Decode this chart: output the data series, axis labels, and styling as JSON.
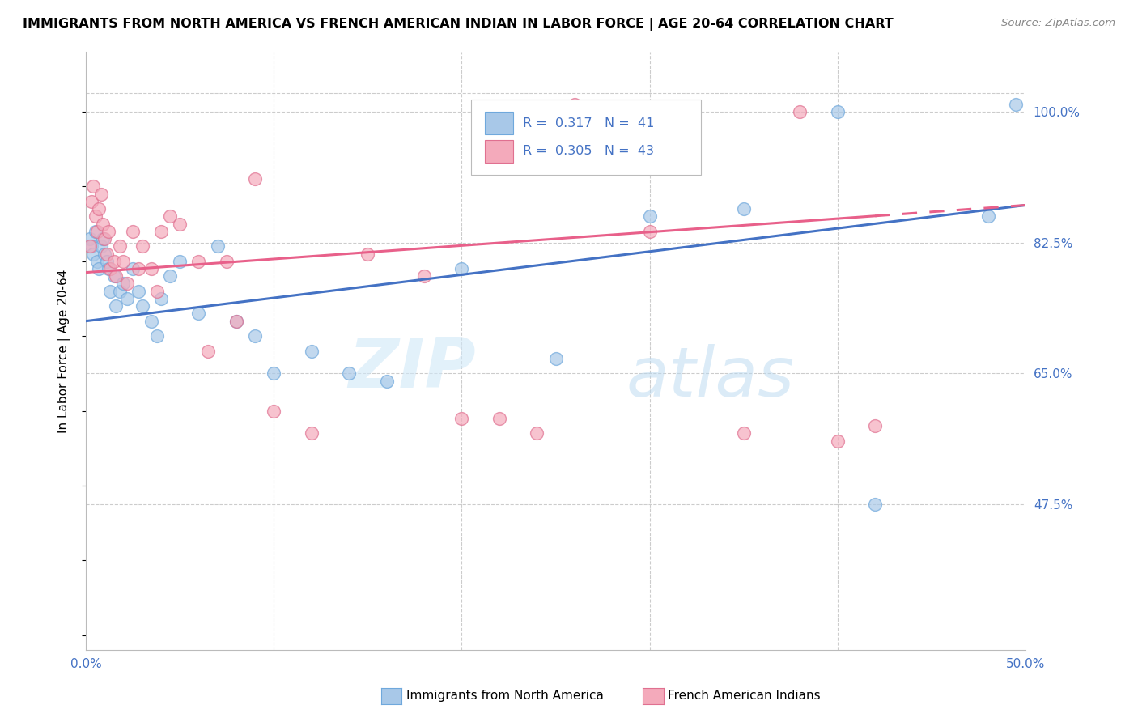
{
  "title": "IMMIGRANTS FROM NORTH AMERICA VS FRENCH AMERICAN INDIAN IN LABOR FORCE | AGE 20-64 CORRELATION CHART",
  "source": "Source: ZipAtlas.com",
  "ylabel": "In Labor Force | Age 20-64",
  "r1": 0.317,
  "n1": 41,
  "r2": 0.305,
  "n2": 43,
  "xlim": [
    0.0,
    0.5
  ],
  "ylim": [
    0.28,
    1.08
  ],
  "xtick_positions": [
    0.0,
    0.1,
    0.2,
    0.3,
    0.4,
    0.5
  ],
  "xticklabels": [
    "0.0%",
    "",
    "",
    "",
    "",
    "50.0%"
  ],
  "yticks_right": [
    0.475,
    0.65,
    0.825,
    1.0
  ],
  "ytick_labels_right": [
    "47.5%",
    "65.0%",
    "82.5%",
    "100.0%"
  ],
  "watermark_zip": "ZIP",
  "watermark_atlas": "atlas",
  "footer_label1": "Immigrants from North America",
  "footer_label2": "French American Indians",
  "blue_color_face": "#A8C8E8",
  "blue_color_edge": "#6FA8DC",
  "pink_color_face": "#F4AABB",
  "pink_color_edge": "#E07090",
  "blue_line_color": "#4472C4",
  "pink_line_color": "#E8608A",
  "grid_color": "#CCCCCC",
  "bg_color": "#FFFFFF",
  "blue_scatter_x": [
    0.002,
    0.003,
    0.004,
    0.005,
    0.006,
    0.007,
    0.008,
    0.009,
    0.01,
    0.011,
    0.012,
    0.013,
    0.015,
    0.016,
    0.018,
    0.02,
    0.022,
    0.025,
    0.028,
    0.03,
    0.035,
    0.038,
    0.04,
    0.045,
    0.05,
    0.06,
    0.07,
    0.08,
    0.09,
    0.1,
    0.12,
    0.14,
    0.16,
    0.2,
    0.25,
    0.3,
    0.35,
    0.4,
    0.42,
    0.48,
    0.495
  ],
  "blue_scatter_y": [
    0.83,
    0.82,
    0.81,
    0.84,
    0.8,
    0.79,
    0.82,
    0.83,
    0.81,
    0.8,
    0.79,
    0.76,
    0.78,
    0.74,
    0.76,
    0.77,
    0.75,
    0.79,
    0.76,
    0.74,
    0.72,
    0.7,
    0.75,
    0.78,
    0.8,
    0.73,
    0.82,
    0.72,
    0.7,
    0.65,
    0.68,
    0.65,
    0.64,
    0.79,
    0.67,
    0.86,
    0.87,
    1.0,
    0.475,
    0.86,
    1.01
  ],
  "pink_scatter_x": [
    0.002,
    0.003,
    0.004,
    0.005,
    0.006,
    0.007,
    0.008,
    0.009,
    0.01,
    0.011,
    0.012,
    0.013,
    0.015,
    0.016,
    0.018,
    0.02,
    0.022,
    0.025,
    0.028,
    0.03,
    0.035,
    0.038,
    0.04,
    0.045,
    0.05,
    0.06,
    0.065,
    0.075,
    0.08,
    0.09,
    0.1,
    0.12,
    0.15,
    0.18,
    0.2,
    0.22,
    0.24,
    0.26,
    0.3,
    0.35,
    0.38,
    0.4,
    0.42
  ],
  "pink_scatter_y": [
    0.82,
    0.88,
    0.9,
    0.86,
    0.84,
    0.87,
    0.89,
    0.85,
    0.83,
    0.81,
    0.84,
    0.79,
    0.8,
    0.78,
    0.82,
    0.8,
    0.77,
    0.84,
    0.79,
    0.82,
    0.79,
    0.76,
    0.84,
    0.86,
    0.85,
    0.8,
    0.68,
    0.8,
    0.72,
    0.91,
    0.6,
    0.57,
    0.81,
    0.78,
    0.59,
    0.59,
    0.57,
    1.01,
    0.84,
    0.57,
    1.0,
    0.56,
    0.58
  ],
  "blue_line_x0": 0.0,
  "blue_line_y0": 0.72,
  "blue_line_x1": 0.5,
  "blue_line_y1": 0.875,
  "pink_line_x0": 0.0,
  "pink_line_y0": 0.785,
  "pink_line_x1": 0.5,
  "pink_line_y1": 0.875
}
